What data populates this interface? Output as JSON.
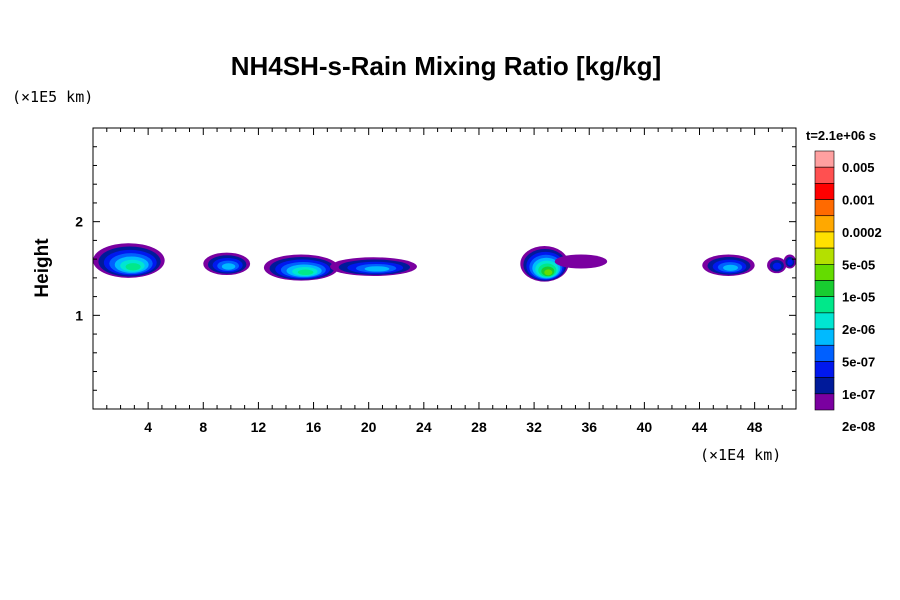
{
  "chart_data": {
    "type": "heatmap",
    "title": "NH4SH-s-Rain Mixing Ratio [kg/kg]",
    "ylabel": "Height",
    "x_unit": "(×1E4 km)",
    "y_unit": "(×1E5 km)",
    "time_label": "t=2.1e+06 s",
    "xlim": [
      0,
      51
    ],
    "ylim": [
      0,
      3
    ],
    "x_ticks": [
      "4",
      "8",
      "12",
      "16",
      "20",
      "24",
      "28",
      "32",
      "36",
      "40",
      "44",
      "48"
    ],
    "x_tick_values": [
      4,
      8,
      12,
      16,
      20,
      24,
      28,
      32,
      36,
      40,
      44,
      48
    ],
    "y_ticks": [
      "1",
      "2"
    ],
    "y_tick_values": [
      1,
      2
    ],
    "legend": {
      "labels": [
        "0.005",
        "0.001",
        "0.0002",
        "5e-05",
        "1e-05",
        "2e-06",
        "5e-07",
        "1e-07",
        "2e-08"
      ],
      "colors": [
        "#ffa0a0",
        "#ff5050",
        "#ff0000",
        "#ff6a00",
        "#ffa800",
        "#ffe000",
        "#b4e000",
        "#64dc00",
        "#18cc30",
        "#00e88a",
        "#00e6d2",
        "#00baff",
        "#0060ff",
        "#0018ee",
        "#001a9a",
        "#7a00a0"
      ]
    },
    "clouds": [
      {
        "x": [
          0,
          5.2
        ],
        "y": [
          1.4,
          1.77
        ],
        "peak": 1e-05
      },
      {
        "x": [
          8,
          11.4
        ],
        "y": [
          1.43,
          1.67
        ],
        "peak": 2e-06
      },
      {
        "x": [
          12.4,
          17.8
        ],
        "y": [
          1.37,
          1.65
        ],
        "peak": 1e-05
      },
      {
        "x": [
          17.2,
          23.5
        ],
        "y": [
          1.42,
          1.62
        ],
        "peak": 2e-06
      },
      {
        "x": [
          31,
          34.5
        ],
        "y": [
          1.36,
          1.74
        ],
        "peak": 5e-05
      },
      {
        "x": [
          33.5,
          37.3
        ],
        "y": [
          1.5,
          1.65
        ],
        "peak": 1e-07
      },
      {
        "x": [
          44.2,
          48
        ],
        "y": [
          1.42,
          1.65
        ],
        "peak": 2e-06
      },
      {
        "x": [
          48.9,
          50.3
        ],
        "y": [
          1.45,
          1.62
        ],
        "peak": 5e-07
      },
      {
        "x": [
          50.1,
          51
        ],
        "y": [
          1.5,
          1.65
        ],
        "peak": 5e-07
      }
    ]
  }
}
